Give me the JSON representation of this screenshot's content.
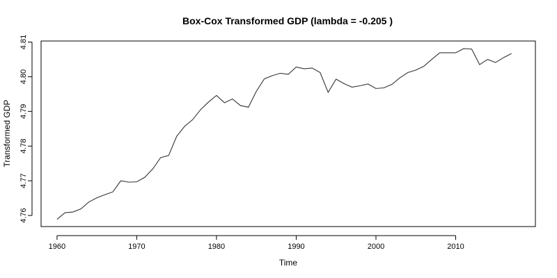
{
  "chart_data": {
    "type": "line",
    "title": "Box-Cox Transformed GDP (lambda = -0.205 )",
    "xlabel": "Time",
    "ylabel": "Transformed GDP",
    "xlim": [
      1958,
      2020
    ],
    "ylim": [
      4.7568,
      4.8103
    ],
    "x_ticks": [
      1960,
      1970,
      1980,
      1990,
      2000,
      2010
    ],
    "y_ticks": [
      4.76,
      4.77,
      4.78,
      4.79,
      4.8,
      4.81
    ],
    "y_tick_labels": [
      "4.76",
      "4.77",
      "4.78",
      "4.79",
      "4.80",
      "4.81"
    ],
    "grid": false,
    "line_color": "#333333",
    "series": [
      {
        "x": [
          1960,
          1961,
          1962,
          1963,
          1964,
          1965,
          1966,
          1967,
          1968,
          1969,
          1970,
          1971,
          1972,
          1973,
          1974,
          1975,
          1976,
          1977,
          1978,
          1979,
          1980,
          1981,
          1982,
          1983,
          1984,
          1985,
          1986,
          1987,
          1988,
          1989,
          1990,
          1991,
          1992,
          1993,
          1994,
          1995,
          1996,
          1997,
          1998,
          1999,
          2000,
          2001,
          2002,
          2003,
          2004,
          2005,
          2006,
          2007,
          2008,
          2009,
          2010,
          2011,
          2012,
          2013,
          2014,
          2015,
          2016,
          2017
        ],
        "values": [
          4.7589,
          4.7608,
          4.761,
          4.7619,
          4.7639,
          4.7651,
          4.766,
          4.7668,
          4.77,
          4.7696,
          4.7697,
          4.771,
          4.7734,
          4.7767,
          4.7773,
          4.7828,
          4.7857,
          4.7876,
          4.7905,
          4.7927,
          4.7946,
          4.7925,
          4.7936,
          4.7917,
          4.7912,
          4.7958,
          4.7994,
          4.8003,
          4.801,
          4.8007,
          4.8028,
          4.8023,
          4.8025,
          4.8012,
          4.7955,
          4.7993,
          4.798,
          4.797,
          4.7974,
          4.7979,
          4.7966,
          4.7968,
          4.7978,
          4.7997,
          4.8012,
          4.8019,
          4.803,
          4.805,
          4.8069,
          4.8069,
          4.8069,
          4.8081,
          4.808,
          4.8035,
          4.805,
          4.8041,
          4.8055,
          4.8067
        ]
      }
    ]
  }
}
